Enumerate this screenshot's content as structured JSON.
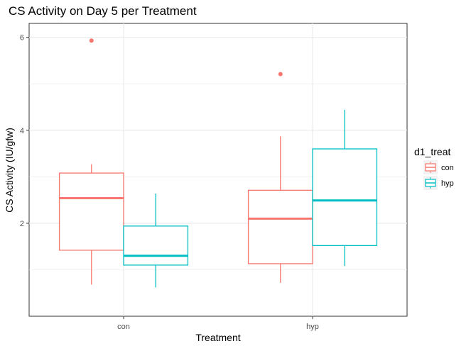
{
  "chart_data": {
    "type": "boxplot",
    "title": "CS Activity on Day 5 per Treatment",
    "xlabel": "Treatment",
    "ylabel": "CS Activity (IU/gfw)",
    "categories": [
      "con",
      "hyp"
    ],
    "ylim": [
      0.0,
      6.3
    ],
    "yticks": [
      2,
      4,
      6
    ],
    "grid": true,
    "legend": {
      "title": "d1_treat",
      "placement": "right",
      "entries": [
        "con",
        "hyp"
      ]
    },
    "series": [
      {
        "name": "con",
        "color": "#f8766d",
        "boxes": [
          {
            "category": "con",
            "whisker_low": 0.68,
            "q1": 1.42,
            "median": 2.54,
            "q3": 3.08,
            "whisker_high": 3.27,
            "outliers": [
              5.93
            ]
          },
          {
            "category": "hyp",
            "whisker_low": 0.72,
            "q1": 1.13,
            "median": 2.1,
            "q3": 2.71,
            "whisker_high": 3.87,
            "outliers": [
              5.21
            ]
          }
        ]
      },
      {
        "name": "hyp",
        "color": "#00bfc4",
        "boxes": [
          {
            "category": "con",
            "whisker_low": 0.62,
            "q1": 1.1,
            "median": 1.3,
            "q3": 1.94,
            "whisker_high": 2.64,
            "outliers": []
          },
          {
            "category": "hyp",
            "whisker_low": 1.08,
            "q1": 1.52,
            "median": 2.49,
            "q3": 3.6,
            "whisker_high": 4.44,
            "outliers": []
          }
        ]
      }
    ]
  }
}
